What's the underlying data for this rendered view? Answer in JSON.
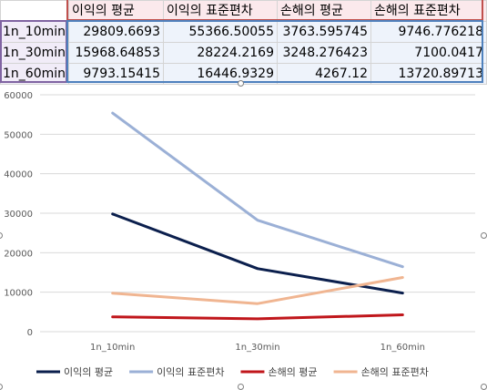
{
  "table": {
    "headers": [
      "",
      "이익의 평균",
      "이익의 표준편차",
      "손해의 평균",
      "손해의 표준편차"
    ],
    "rows": [
      {
        "label": "1n_10min",
        "cells": [
          "29809.6693",
          "55366.50055",
          "3763.595745",
          "9746.776218"
        ]
      },
      {
        "label": "1n_30min",
        "cells": [
          "15968.64853",
          "28224.2169",
          "3248.276423",
          "7100.0417"
        ]
      },
      {
        "label": "1n_60min",
        "cells": [
          "9793.15415",
          "16446.9329",
          "4267.12",
          "13720.89713"
        ]
      }
    ]
  },
  "chart_data": {
    "type": "line",
    "categories": [
      "1n_10min",
      "1n_30min",
      "1n_60min"
    ],
    "series": [
      {
        "name": "이익의 평균",
        "values": [
          29809.6693,
          15968.64853,
          9793.15415
        ],
        "color": "#0b1f4d"
      },
      {
        "name": "이익의 표준편차",
        "values": [
          55366.50055,
          28224.2169,
          16446.9329
        ],
        "color": "#9bb0d6"
      },
      {
        "name": "손해의 평균",
        "values": [
          3763.595745,
          3248.276423,
          4267.12
        ],
        "color": "#c0161b"
      },
      {
        "name": "손해의 표준편차",
        "values": [
          9746.776218,
          7100.0417,
          13720.89713
        ],
        "color": "#f0b591"
      }
    ],
    "ylim": [
      0,
      60000
    ],
    "yticks": [
      0,
      10000,
      20000,
      30000,
      40000,
      50000,
      60000
    ],
    "grid": true,
    "legend": "bottom",
    "title": "",
    "xlabel": "",
    "ylabel": ""
  }
}
